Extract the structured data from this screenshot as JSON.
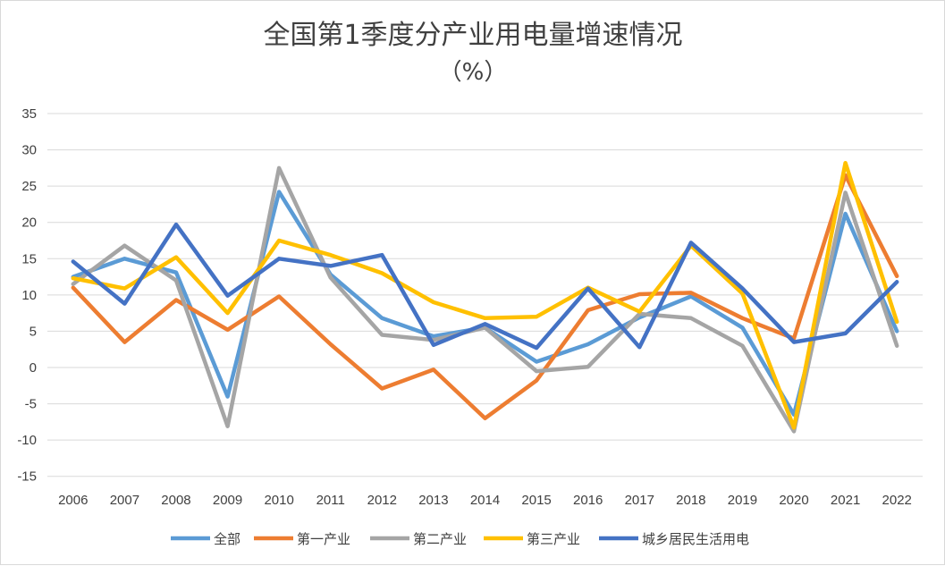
{
  "chart_data": {
    "type": "line",
    "title": "全国第1季度分产业用电量增速情况",
    "subtitle": "（%）",
    "xlabel": "",
    "ylabel": "",
    "ylim": [
      -15,
      35
    ],
    "y_ticks": [
      35,
      30,
      25,
      20,
      15,
      10,
      5,
      0,
      -5,
      -10,
      -15
    ],
    "grid": true,
    "legend_position": "bottom",
    "categories": [
      "2006",
      "2007",
      "2008",
      "2009",
      "2010",
      "2011",
      "2012",
      "2013",
      "2014",
      "2015",
      "2016",
      "2017",
      "2018",
      "2019",
      "2020",
      "2021",
      "2022"
    ],
    "series": [
      {
        "name": "全部",
        "color": "#5b9bd5",
        "values": [
          12.5,
          15.0,
          13.1,
          -4.0,
          24.2,
          12.8,
          6.8,
          4.3,
          5.5,
          0.8,
          3.2,
          6.9,
          9.8,
          5.5,
          -6.5,
          21.2,
          5.0
        ]
      },
      {
        "name": "第一产业",
        "color": "#ed7d31",
        "values": [
          11.0,
          3.5,
          9.3,
          5.2,
          9.8,
          3.2,
          -2.9,
          -0.3,
          -7.0,
          -1.8,
          7.9,
          10.1,
          10.3,
          6.8,
          4.0,
          26.5,
          12.6
        ]
      },
      {
        "name": "第二产业",
        "color": "#a5a5a5",
        "values": [
          11.5,
          16.8,
          12.0,
          -8.1,
          27.5,
          12.4,
          4.5,
          3.8,
          5.5,
          -0.5,
          0.1,
          7.4,
          6.8,
          3.0,
          -8.8,
          24.1,
          3.0
        ]
      },
      {
        "name": "第三产业",
        "color": "#ffc000",
        "values": [
          12.3,
          10.9,
          15.2,
          7.5,
          17.5,
          15.5,
          13.0,
          9.0,
          6.8,
          7.0,
          11.0,
          7.7,
          16.8,
          10.2,
          -8.3,
          28.2,
          6.3
        ]
      },
      {
        "name": "城乡居民生活用电",
        "color": "#4472c4",
        "values": [
          14.6,
          8.8,
          19.7,
          9.9,
          15.0,
          14.0,
          15.5,
          3.1,
          6.0,
          2.7,
          10.9,
          2.8,
          17.2,
          10.9,
          3.5,
          4.7,
          11.8
        ]
      }
    ]
  }
}
